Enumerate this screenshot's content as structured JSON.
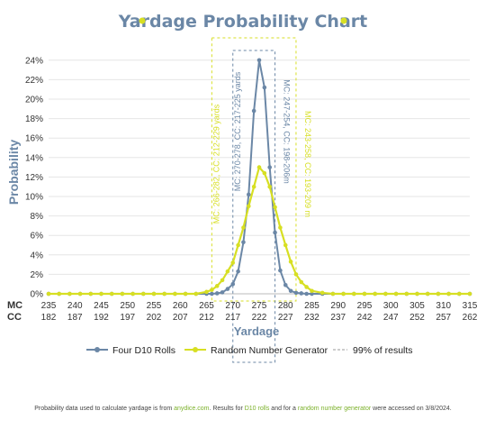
{
  "chart_data": {
    "type": "line",
    "title": "Yardage Probability Chart",
    "xlabel": "Yardage",
    "ylabel": "Probability",
    "axis_row_labels": [
      "MC",
      "CC"
    ],
    "mc_ticks": [
      235,
      240,
      245,
      250,
      255,
      260,
      265,
      270,
      275,
      280,
      285,
      290,
      295,
      300,
      305,
      310,
      315
    ],
    "cc_ticks": [
      182,
      187,
      192,
      197,
      202,
      207,
      212,
      217,
      222,
      227,
      232,
      237,
      242,
      247,
      252,
      257,
      262
    ],
    "y_ticks": [
      "0%",
      "2%",
      "4%",
      "6%",
      "8%",
      "10%",
      "12%",
      "14%",
      "16%",
      "18%",
      "20%",
      "22%",
      "24%"
    ],
    "ylim": [
      0,
      25
    ],
    "xlim": [
      235,
      315
    ],
    "x": [
      235,
      237,
      239,
      241,
      243,
      245,
      247,
      249,
      251,
      253,
      255,
      257,
      259,
      261,
      263,
      265,
      266,
      267,
      268,
      269,
      270,
      271,
      272,
      273,
      274,
      275,
      276,
      277,
      278,
      279,
      280,
      281,
      282,
      283,
      284,
      285,
      287,
      289,
      291,
      293,
      295,
      297,
      299,
      301,
      303,
      305,
      307,
      309,
      311,
      313,
      315
    ],
    "series": [
      {
        "name": "Four D10 Rolls",
        "color": "#6b87a6",
        "values": [
          0,
          0,
          0,
          0,
          0,
          0,
          0,
          0,
          0,
          0,
          0,
          0,
          0,
          0,
          0,
          0,
          0,
          0.05,
          0.15,
          0.5,
          1,
          2.3,
          5.3,
          10.2,
          18.8,
          24,
          21.2,
          13,
          6.3,
          2.4,
          0.9,
          0.3,
          0.1,
          0.05,
          0,
          0,
          0,
          0,
          0,
          0,
          0,
          0,
          0,
          0,
          0,
          0,
          0,
          0,
          0,
          0,
          0
        ]
      },
      {
        "name": "Random Number Generator",
        "color": "#d7df23",
        "values": [
          0,
          0,
          0,
          0,
          0,
          0,
          0,
          0,
          0,
          0,
          0,
          0,
          0,
          0,
          0,
          0.2,
          0.4,
          0.8,
          1.4,
          2.3,
          3.2,
          5,
          6.8,
          9,
          11,
          13,
          12.4,
          11,
          8.9,
          6.8,
          5,
          3.3,
          2,
          1.2,
          0.7,
          0.3,
          0.1,
          0,
          0,
          0,
          0,
          0,
          0,
          0,
          0,
          0,
          0,
          0,
          0,
          0,
          0
        ]
      }
    ],
    "ranges": [
      {
        "label": "MC: 266-282, CC: 212-229 yards",
        "x0": 266,
        "x1": 282,
        "color": "#d7df23",
        "side": "left"
      },
      {
        "label": "MC: 243-258, CC: 193-209 m",
        "x0": 266,
        "x1": 282,
        "color": "#d7df23",
        "side": "right"
      },
      {
        "label": "MC: 270-278, CC: 217-225 yards",
        "x0": 270,
        "x1": 278,
        "color": "#6b87a6",
        "side": "left"
      },
      {
        "label": "MC: 247-254, CC: 198-206m",
        "x0": 270,
        "x1": 278,
        "color": "#6b87a6",
        "side": "right"
      }
    ],
    "legend": {
      "placement": "bottom",
      "items": [
        "Four D10 Rolls",
        "Random Number Generator",
        "99% of results"
      ]
    },
    "grid": true
  },
  "footer": {
    "t1": "Probability data used to calculate yardage is from ",
    "l1": "anydice.com",
    "t2": ". Results for ",
    "l2": "D10 rolls",
    "t3": " and for a ",
    "l3": "random number generator",
    "t4": " were accessed on 3/8/2024."
  }
}
